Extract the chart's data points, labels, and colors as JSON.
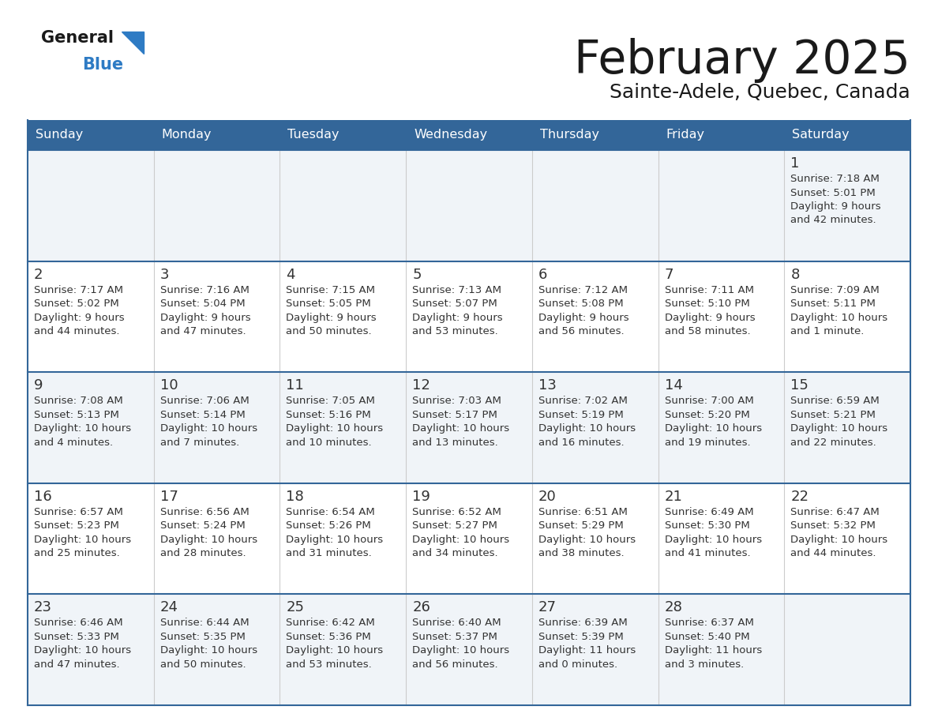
{
  "title": "February 2025",
  "subtitle": "Sainte-Adele, Quebec, Canada",
  "days_of_week": [
    "Sunday",
    "Monday",
    "Tuesday",
    "Wednesday",
    "Thursday",
    "Friday",
    "Saturday"
  ],
  "header_bg": "#336699",
  "header_text": "#ffffff",
  "cell_bg_even": "#ffffff",
  "cell_bg_odd": "#f0f4f8",
  "grid_line_color": "#336699",
  "day_number_color": "#333333",
  "info_text_color": "#333333",
  "title_color": "#1a1a1a",
  "logo_general_color": "#1a1a1a",
  "logo_blue_color": "#2e7bc4",
  "weeks": [
    [
      {
        "day": null,
        "info": ""
      },
      {
        "day": null,
        "info": ""
      },
      {
        "day": null,
        "info": ""
      },
      {
        "day": null,
        "info": ""
      },
      {
        "day": null,
        "info": ""
      },
      {
        "day": null,
        "info": ""
      },
      {
        "day": 1,
        "info": "Sunrise: 7:18 AM\nSunset: 5:01 PM\nDaylight: 9 hours\nand 42 minutes."
      }
    ],
    [
      {
        "day": 2,
        "info": "Sunrise: 7:17 AM\nSunset: 5:02 PM\nDaylight: 9 hours\nand 44 minutes."
      },
      {
        "day": 3,
        "info": "Sunrise: 7:16 AM\nSunset: 5:04 PM\nDaylight: 9 hours\nand 47 minutes."
      },
      {
        "day": 4,
        "info": "Sunrise: 7:15 AM\nSunset: 5:05 PM\nDaylight: 9 hours\nand 50 minutes."
      },
      {
        "day": 5,
        "info": "Sunrise: 7:13 AM\nSunset: 5:07 PM\nDaylight: 9 hours\nand 53 minutes."
      },
      {
        "day": 6,
        "info": "Sunrise: 7:12 AM\nSunset: 5:08 PM\nDaylight: 9 hours\nand 56 minutes."
      },
      {
        "day": 7,
        "info": "Sunrise: 7:11 AM\nSunset: 5:10 PM\nDaylight: 9 hours\nand 58 minutes."
      },
      {
        "day": 8,
        "info": "Sunrise: 7:09 AM\nSunset: 5:11 PM\nDaylight: 10 hours\nand 1 minute."
      }
    ],
    [
      {
        "day": 9,
        "info": "Sunrise: 7:08 AM\nSunset: 5:13 PM\nDaylight: 10 hours\nand 4 minutes."
      },
      {
        "day": 10,
        "info": "Sunrise: 7:06 AM\nSunset: 5:14 PM\nDaylight: 10 hours\nand 7 minutes."
      },
      {
        "day": 11,
        "info": "Sunrise: 7:05 AM\nSunset: 5:16 PM\nDaylight: 10 hours\nand 10 minutes."
      },
      {
        "day": 12,
        "info": "Sunrise: 7:03 AM\nSunset: 5:17 PM\nDaylight: 10 hours\nand 13 minutes."
      },
      {
        "day": 13,
        "info": "Sunrise: 7:02 AM\nSunset: 5:19 PM\nDaylight: 10 hours\nand 16 minutes."
      },
      {
        "day": 14,
        "info": "Sunrise: 7:00 AM\nSunset: 5:20 PM\nDaylight: 10 hours\nand 19 minutes."
      },
      {
        "day": 15,
        "info": "Sunrise: 6:59 AM\nSunset: 5:21 PM\nDaylight: 10 hours\nand 22 minutes."
      }
    ],
    [
      {
        "day": 16,
        "info": "Sunrise: 6:57 AM\nSunset: 5:23 PM\nDaylight: 10 hours\nand 25 minutes."
      },
      {
        "day": 17,
        "info": "Sunrise: 6:56 AM\nSunset: 5:24 PM\nDaylight: 10 hours\nand 28 minutes."
      },
      {
        "day": 18,
        "info": "Sunrise: 6:54 AM\nSunset: 5:26 PM\nDaylight: 10 hours\nand 31 minutes."
      },
      {
        "day": 19,
        "info": "Sunrise: 6:52 AM\nSunset: 5:27 PM\nDaylight: 10 hours\nand 34 minutes."
      },
      {
        "day": 20,
        "info": "Sunrise: 6:51 AM\nSunset: 5:29 PM\nDaylight: 10 hours\nand 38 minutes."
      },
      {
        "day": 21,
        "info": "Sunrise: 6:49 AM\nSunset: 5:30 PM\nDaylight: 10 hours\nand 41 minutes."
      },
      {
        "day": 22,
        "info": "Sunrise: 6:47 AM\nSunset: 5:32 PM\nDaylight: 10 hours\nand 44 minutes."
      }
    ],
    [
      {
        "day": 23,
        "info": "Sunrise: 6:46 AM\nSunset: 5:33 PM\nDaylight: 10 hours\nand 47 minutes."
      },
      {
        "day": 24,
        "info": "Sunrise: 6:44 AM\nSunset: 5:35 PM\nDaylight: 10 hours\nand 50 minutes."
      },
      {
        "day": 25,
        "info": "Sunrise: 6:42 AM\nSunset: 5:36 PM\nDaylight: 10 hours\nand 53 minutes."
      },
      {
        "day": 26,
        "info": "Sunrise: 6:40 AM\nSunset: 5:37 PM\nDaylight: 10 hours\nand 56 minutes."
      },
      {
        "day": 27,
        "info": "Sunrise: 6:39 AM\nSunset: 5:39 PM\nDaylight: 11 hours\nand 0 minutes."
      },
      {
        "day": 28,
        "info": "Sunrise: 6:37 AM\nSunset: 5:40 PM\nDaylight: 11 hours\nand 3 minutes."
      },
      {
        "day": null,
        "info": ""
      }
    ]
  ],
  "figsize": [
    11.88,
    9.18
  ],
  "dpi": 100
}
